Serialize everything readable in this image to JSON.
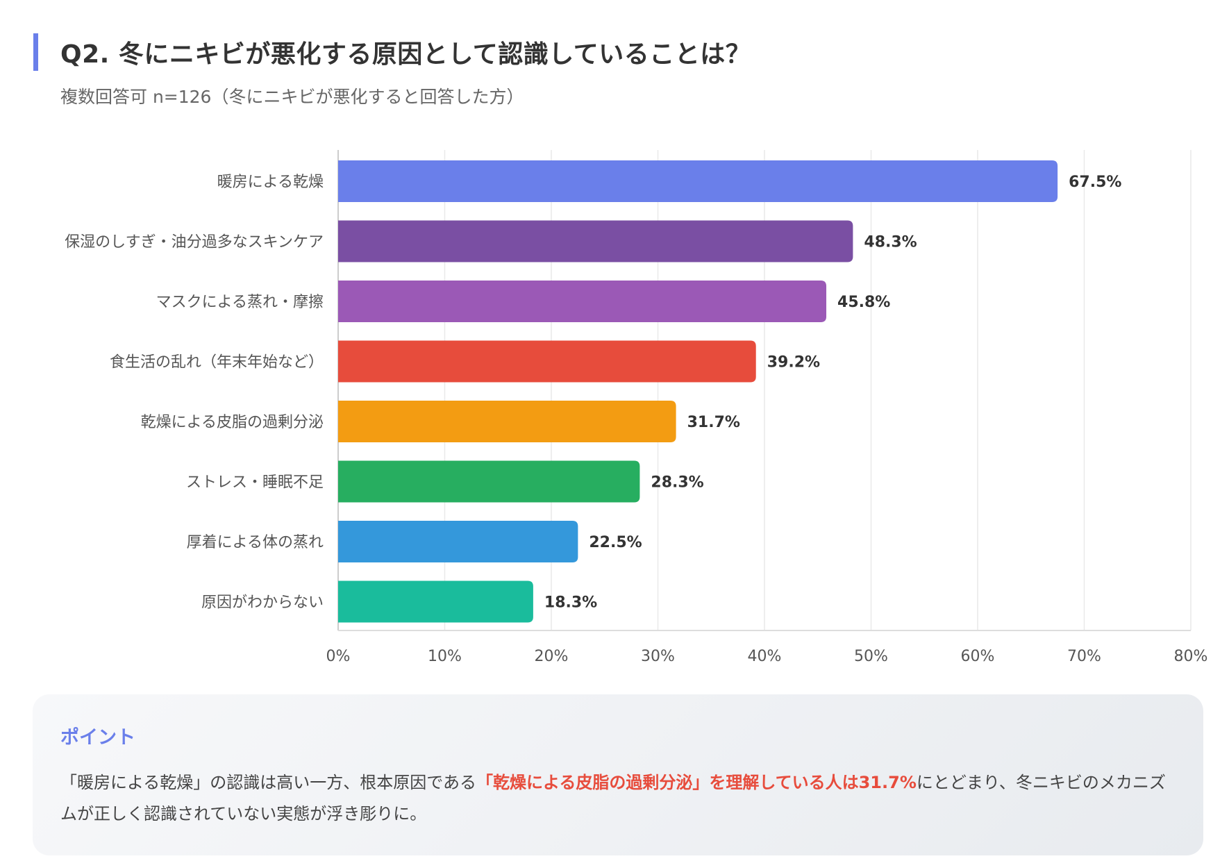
{
  "header": {
    "title": "Q2. 冬にニキビが悪化する原因として認識していることは？",
    "subtitle": "複数回答可 n=126（冬にニキビが悪化すると回答した方）"
  },
  "chart_data": {
    "type": "bar",
    "orientation": "horizontal",
    "categories": [
      "暖房による乾燥",
      "保湿のしすぎ・油分過多なスキンケア",
      "マスクによる蒸れ・摩擦",
      "食生活の乱れ（年末年始など）",
      "乾燥による皮脂の過剰分泌",
      "ストレス・睡眠不足",
      "厚着による体の蒸れ",
      "原因がわからない"
    ],
    "values": [
      67.5,
      48.3,
      45.8,
      39.2,
      31.7,
      28.3,
      22.5,
      18.3
    ],
    "value_labels": [
      "67.5%",
      "48.3%",
      "45.8%",
      "39.2%",
      "31.7%",
      "28.3%",
      "22.5%",
      "18.3%"
    ],
    "colors": [
      "#6a7fea",
      "#7a4fa3",
      "#9b59b6",
      "#e74c3c",
      "#f39c12",
      "#27ae60",
      "#3498db",
      "#1abc9c"
    ],
    "xlim": [
      0,
      80
    ],
    "ticks": [
      0,
      10,
      20,
      30,
      40,
      50,
      60,
      70,
      80
    ],
    "tick_labels": [
      "0%",
      "10%",
      "20%",
      "30%",
      "40%",
      "50%",
      "60%",
      "70%",
      "80%"
    ],
    "grid": true
  },
  "point": {
    "title": "ポイント",
    "text_before": "「暖房による乾燥」の認識は高い一方、根本原因である",
    "text_highlight": "「乾燥による皮脂の過剰分泌」を理解している人は31.7%",
    "text_after": "にとどまり、冬ニキビのメカニズムが正しく認識されていない実態が浮き彫りに。"
  }
}
